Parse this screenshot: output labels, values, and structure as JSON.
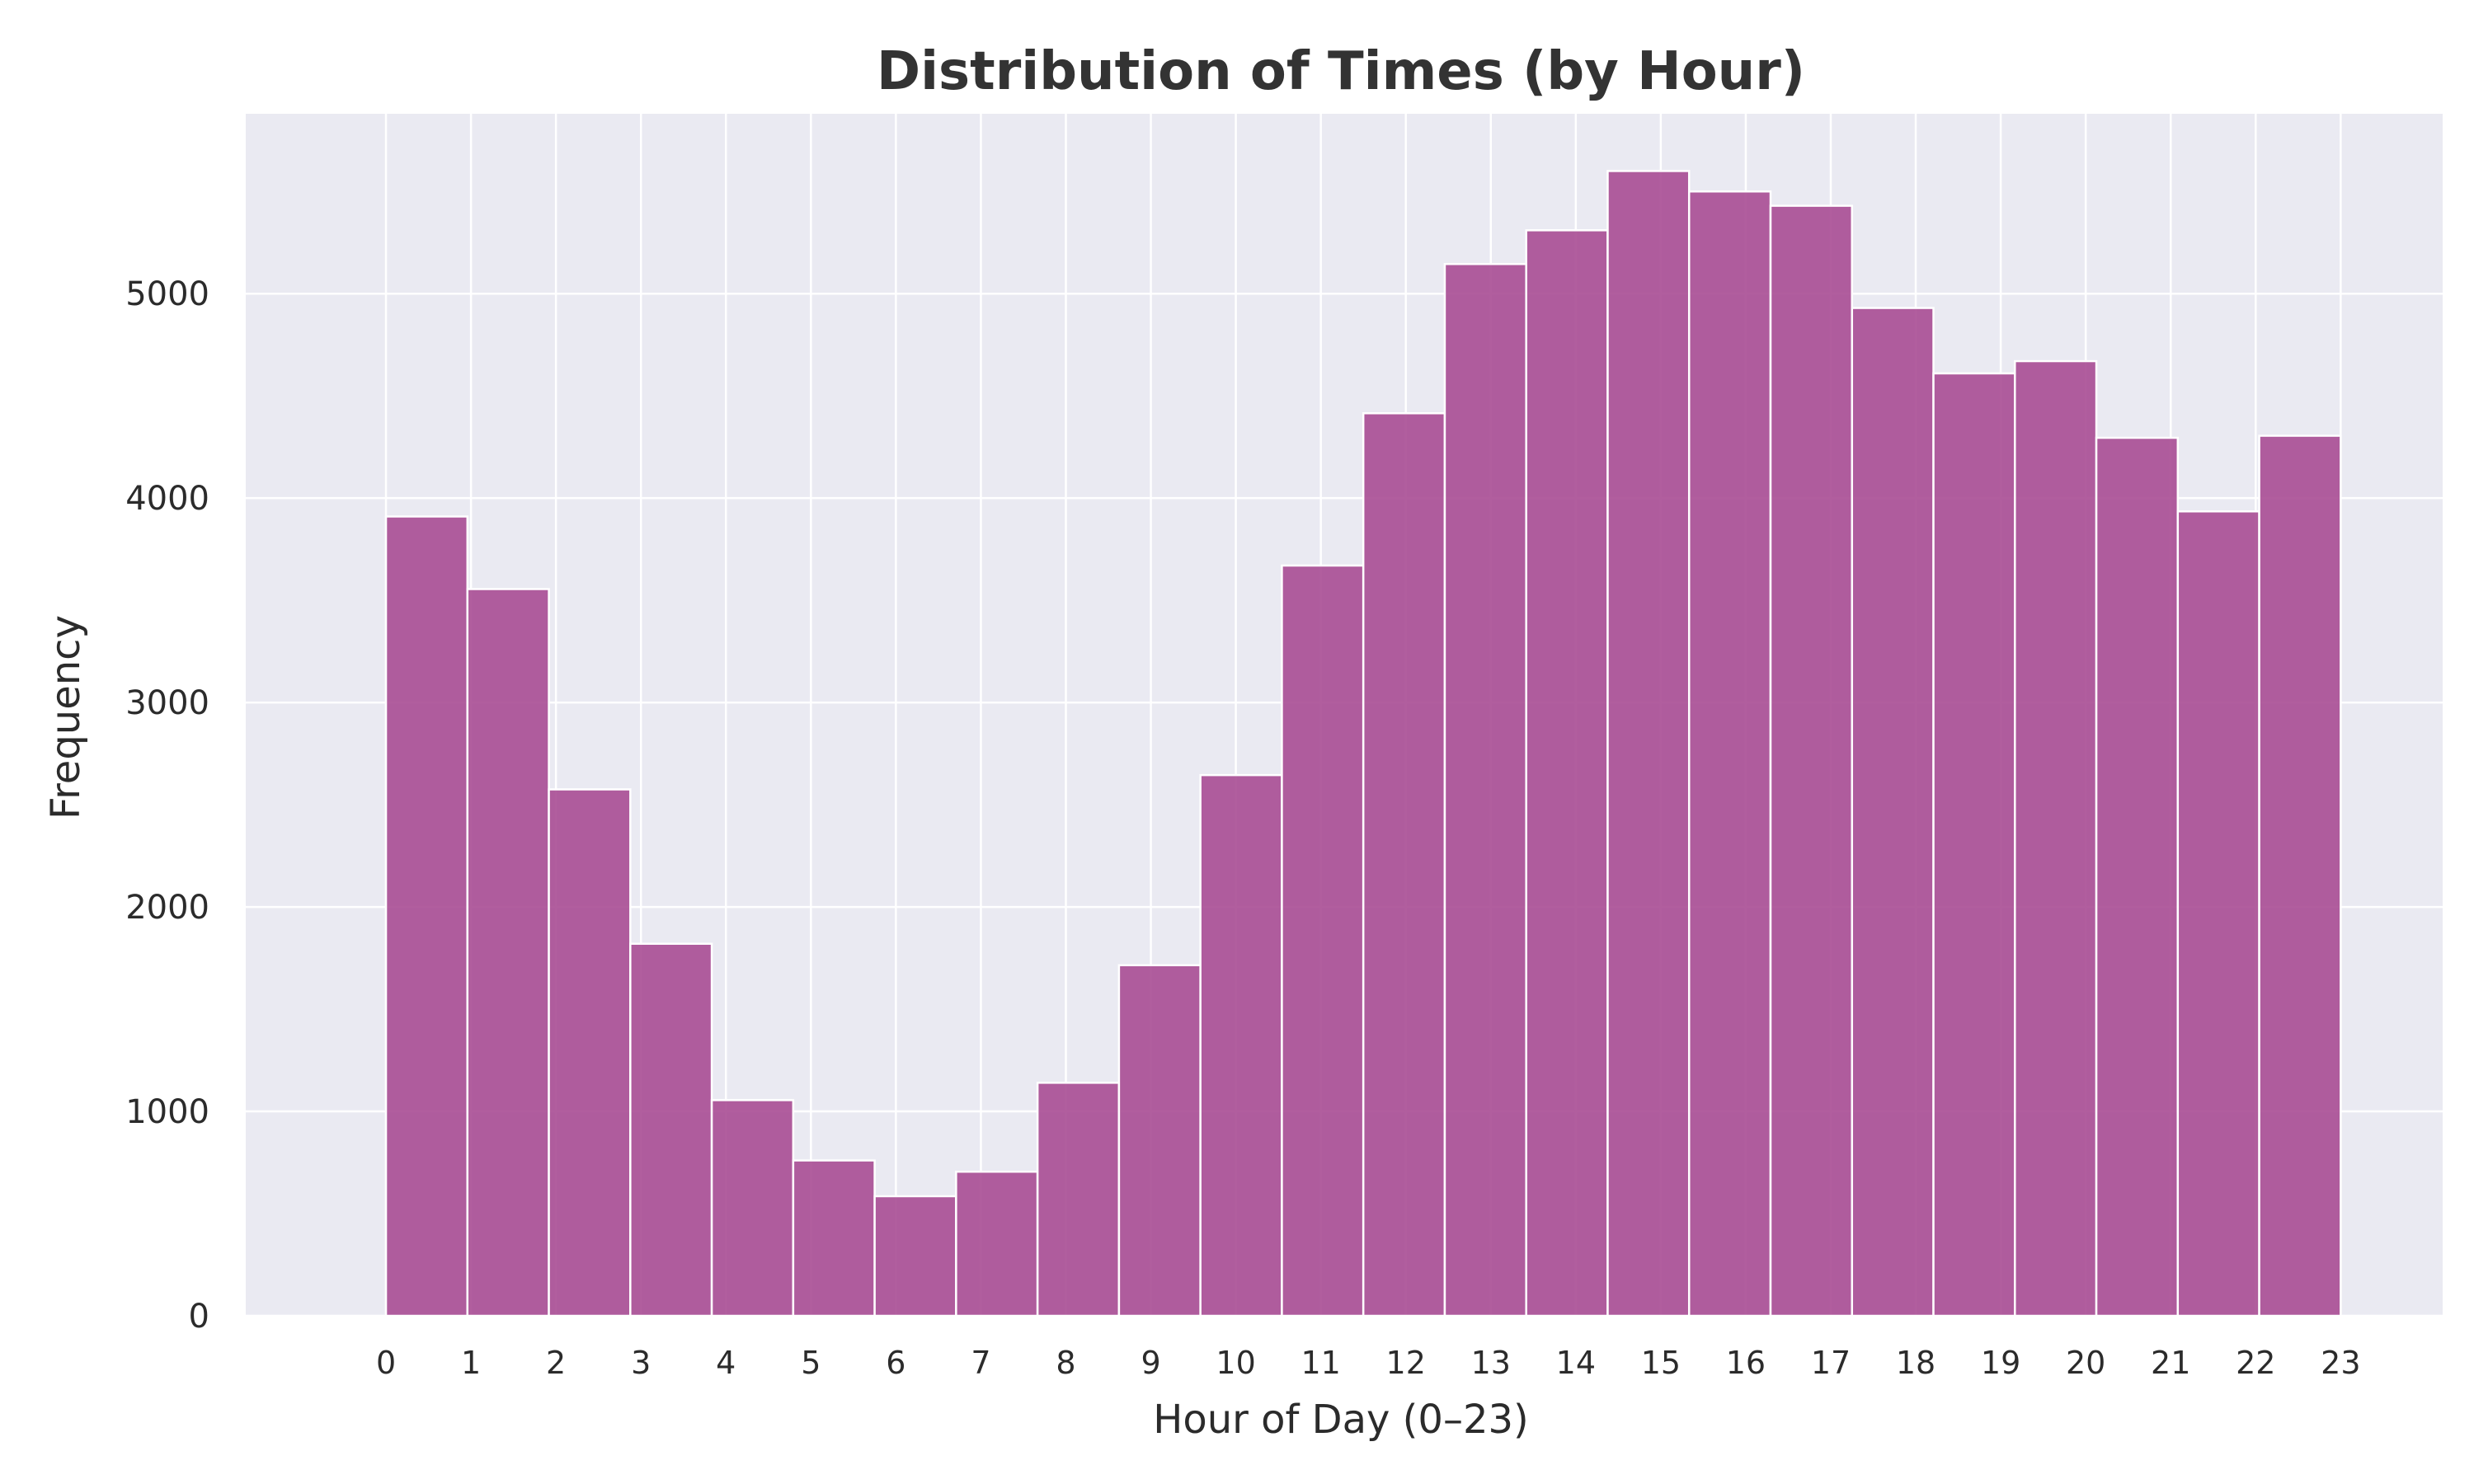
{
  "chart_data": {
    "type": "bar",
    "title": "Distribution of Times (by Hour)",
    "xlabel": "Hour of Day (0–23)",
    "ylabel": "Frequency",
    "categories": [
      "0",
      "1",
      "2",
      "3",
      "4",
      "5",
      "6",
      "7",
      "8",
      "9",
      "10",
      "11",
      "12",
      "13",
      "14",
      "15",
      "16",
      "17",
      "18",
      "19",
      "20",
      "21",
      "22",
      "23"
    ],
    "values": [
      3910,
      3555,
      2575,
      1820,
      1055,
      760,
      585,
      705,
      1140,
      1715,
      2645,
      3670,
      4415,
      5145,
      5310,
      5600,
      5500,
      5430,
      4930,
      4610,
      4670,
      4295,
      3935,
      4305
    ],
    "ylim": [
      0,
      5880
    ],
    "xlim": [
      -1.65,
      24.2
    ],
    "yticks": [
      0,
      1000,
      2000,
      3000,
      4000,
      5000
    ],
    "grid": true,
    "colors": {
      "bar": "#a94c93",
      "bar_edge": "#ffffff",
      "plot_background": "#eaeaf2",
      "grid": "#ffffff"
    }
  }
}
